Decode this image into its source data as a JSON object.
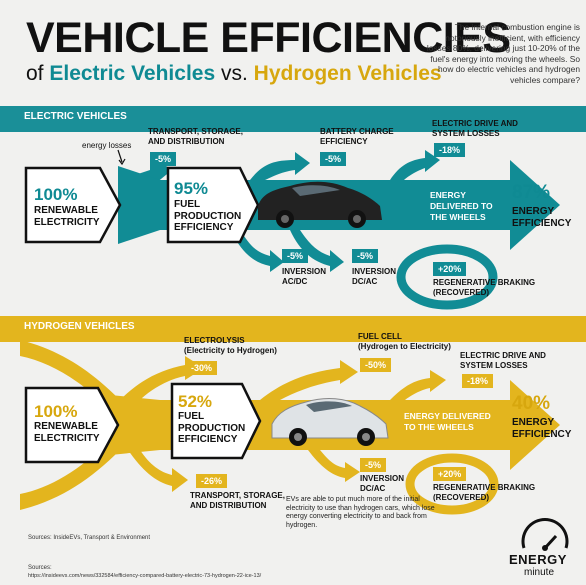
{
  "header": {
    "title": "VEHICLE EFFICIENCIES",
    "sub_of": "of ",
    "sub_ev": "Electric Vehicles",
    "sub_vs": " vs. ",
    "sub_h": "Hydrogen Vehicles",
    "intro": "The internal combustion engine is notoriously inefficient, with efficiency losses 80%, delivering just 10-20% of the fuel's energy into moving the wheels. So how do electric vehicles and hydrogen vehicles compare?"
  },
  "colors": {
    "ev": "#118c95",
    "h2": "#e3b51e",
    "ev_text": "#0f8a93",
    "h2_text": "#d7a70e"
  },
  "ev": {
    "band_label": "ELECTRIC VEHICLES",
    "energy_losses": "energy losses",
    "transport_label": "TRANSPORT, STORAGE,\nAND DISTRIBUTION",
    "transport_pct": "-5%",
    "battery_label": "BATTERY CHARGE\nEFFICIENCY",
    "battery_pct": "-5%",
    "drive_label": "ELECTRIC DRIVE AND\nSYSTEM LOSSES",
    "drive_pct": "-18%",
    "renew_pct": "100%",
    "renew_label": "RENEWABLE\nELECTRICITY",
    "fuel_pct": "95%",
    "fuel_label": "FUEL\nPRODUCTION\nEFFICIENCY",
    "delivered": "ENERGY\nDELIVERED TO\nTHE WHEELS",
    "final_pct": "87%",
    "final_label": "ENERGY\nEFFICIENCY",
    "inv1_pct": "-5%",
    "inv1_label": "INVERSION\nAC/DC",
    "inv2_pct": "-5%",
    "inv2_label": "INVERSION\nDC/AC",
    "regen_pct": "+20%",
    "regen_label": "REGENERATIVE BRAKING\n(RECOVERED)"
  },
  "h2": {
    "band_label": "HYDROGEN VEHICLES",
    "electro_label": "ELECTROLYSIS\n(Electricity to Hydrogen)",
    "electro_pct": "-30%",
    "cell_label": "FUEL CELL\n(Hydrogen to Electricity)",
    "cell_pct": "-50%",
    "drive_label": "ELECTRIC DRIVE AND\nSYSTEM LOSSES",
    "drive_pct": "-18%",
    "renew_pct": "100%",
    "renew_label": "RENEWABLE\nELECTRICITY",
    "fuel_pct": "52%",
    "fuel_label": "FUEL\nPRODUCTION\nEFFICIENCY",
    "delivered": "ENERGY DELIVERED\nTO THE WHEELS",
    "final_pct": "40%",
    "final_label": "ENERGY\nEFFICIENCY",
    "transport_pct": "-26%",
    "transport_label": "TRANSPORT, STORAGE,\nAND DISTRIBUTION",
    "inv_pct": "-5%",
    "inv_label": "INVERSION\nDC/AC",
    "regen_pct": "+20%",
    "regen_label": "REGENERATIVE BRAKING\n(RECOVERED)",
    "note": "EVs are able to put much more of the initial electricity to use than hydrogen cars, which lose energy converting electricity to and back from hydrogen."
  },
  "footer": {
    "sources_short": "Sources: InsideEVs, Transport & Environment",
    "sources": "Sources:",
    "url": "https://insideevs.com/news/332584/efficiency-compared-battery-electric-73-hydrogen-22-ice-13/",
    "logo_top": "ENERGY",
    "logo_bottom": "minute"
  }
}
